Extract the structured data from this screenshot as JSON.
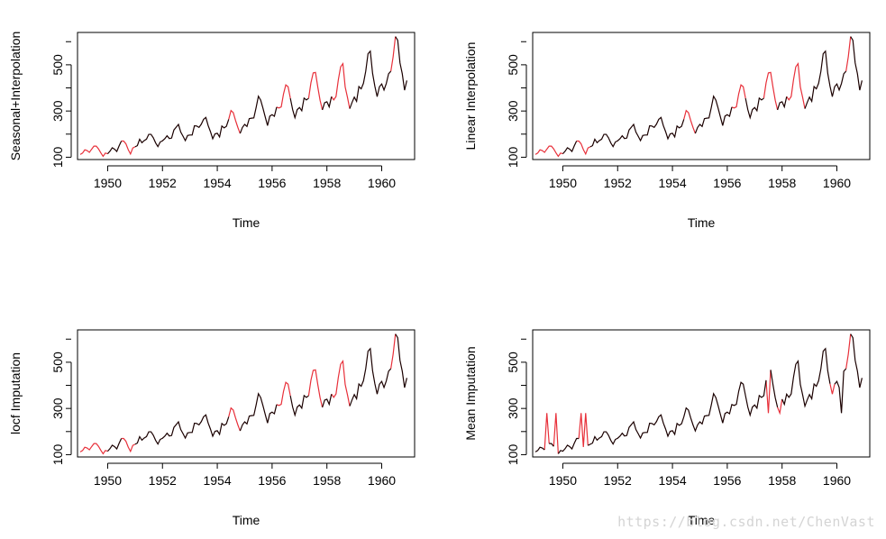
{
  "watermark": "https://blog.csdn.net/ChenVast",
  "colors": {
    "imputed": "#e8303a",
    "original": "#1a0000",
    "axis": "#000000"
  },
  "chart_data": [
    {
      "type": "line",
      "title": "",
      "xlabel": "Time",
      "ylabel": "Seasonal+Interpolation",
      "xlim": [
        1948.9,
        1961.2
      ],
      "ylim": [
        90,
        640
      ],
      "xticks": [
        1950,
        1952,
        1954,
        1956,
        1958,
        1960
      ],
      "yticks": [
        100,
        300,
        500
      ],
      "x_start": 1949,
      "x_step": 0.0833333,
      "series": [
        {
          "values": [
            112,
            118,
            132,
            129,
            121,
            135,
            148,
            148,
            136,
            119,
            104,
            118,
            115,
            126,
            141,
            135,
            125,
            149,
            170,
            170,
            158,
            133,
            114,
            140,
            145,
            150,
            178,
            163,
            172,
            178,
            199,
            199,
            184,
            162,
            146,
            166,
            171,
            180,
            193,
            181,
            183,
            218,
            230,
            242,
            209,
            191,
            172,
            194,
            196,
            196,
            236,
            235,
            229,
            243,
            264,
            272,
            237,
            211,
            180,
            201,
            204,
            188,
            235,
            227,
            234,
            264,
            302,
            293,
            259,
            229,
            203,
            229,
            242,
            233,
            267,
            269,
            270,
            315,
            364,
            347,
            312,
            274,
            237,
            278,
            284,
            277,
            317,
            313,
            318,
            374,
            413,
            405,
            355,
            306,
            271,
            306,
            315,
            301,
            356,
            348,
            355,
            422,
            465,
            467,
            404,
            347,
            305,
            336,
            340,
            318,
            362,
            348,
            363,
            435,
            491,
            505,
            404,
            359,
            310,
            337,
            360,
            342,
            406,
            396,
            420,
            472,
            548,
            559,
            463,
            407,
            362,
            405,
            417,
            391,
            419,
            461,
            472,
            535,
            622,
            606,
            508,
            461,
            390,
            432
          ]
        },
        {
          "values": [
            112,
            118,
            132,
            129,
            121,
            135,
            148,
            148,
            136,
            119,
            104,
            118,
            115,
            126,
            141,
            135,
            125,
            149,
            170,
            170,
            158,
            133,
            114,
            140,
            145,
            150,
            178,
            163,
            172,
            178,
            199,
            199,
            184,
            162,
            146,
            166,
            171,
            180,
            193,
            181,
            183,
            218,
            230,
            242,
            209,
            191,
            172,
            194,
            196,
            196,
            236,
            235,
            229,
            243,
            264,
            272,
            237,
            211,
            180,
            201,
            204,
            188,
            235,
            227,
            234,
            264,
            302,
            293,
            259,
            229,
            203,
            229,
            242,
            233,
            267,
            269,
            270,
            315,
            364,
            347,
            312,
            274,
            237,
            278,
            284,
            277,
            317,
            313,
            318,
            374,
            413,
            405,
            355,
            306,
            271,
            306,
            315,
            301,
            356,
            348,
            355,
            422,
            465,
            467,
            404,
            347,
            305,
            336,
            340,
            318,
            362,
            348,
            363,
            435,
            491,
            505,
            404,
            359,
            310,
            337,
            360,
            342,
            406,
            396,
            420,
            472,
            548,
            559,
            463,
            407,
            362,
            405,
            417,
            391,
            419,
            461,
            472,
            535,
            622,
            606,
            508,
            461,
            390,
            432
          ]
        }
      ],
      "imputed_segments": [
        [
          0,
          12
        ],
        [
          18,
          24
        ],
        [
          65,
          70
        ],
        [
          86,
          92
        ],
        [
          100,
          106
        ],
        [
          110,
          118
        ],
        [
          136,
          138
        ]
      ]
    },
    {
      "type": "line",
      "title": "",
      "xlabel": "Time",
      "ylabel": "Linear Interpolation",
      "xlim": [
        1948.9,
        1961.2
      ],
      "ylim": [
        90,
        640
      ],
      "xticks": [
        1950,
        1952,
        1954,
        1956,
        1958,
        1960
      ],
      "yticks": [
        100,
        300,
        500
      ],
      "x_start": 1949,
      "x_step": 0.0833333,
      "series": [
        {
          "values": [
            112,
            118,
            132,
            129,
            121,
            135,
            148,
            148,
            136,
            119,
            104,
            118,
            115,
            126,
            141,
            135,
            125,
            149,
            170,
            170,
            158,
            133,
            114,
            140,
            145,
            150,
            178,
            163,
            172,
            178,
            199,
            199,
            184,
            162,
            146,
            166,
            171,
            180,
            193,
            181,
            183,
            218,
            230,
            242,
            209,
            191,
            172,
            194,
            196,
            196,
            236,
            235,
            229,
            243,
            264,
            272,
            237,
            211,
            180,
            201,
            204,
            188,
            235,
            227,
            234,
            264,
            302,
            293,
            259,
            229,
            203,
            229,
            242,
            233,
            267,
            269,
            270,
            315,
            364,
            347,
            312,
            274,
            237,
            278,
            284,
            277,
            317,
            313,
            318,
            374,
            413,
            405,
            355,
            306,
            271,
            306,
            315,
            301,
            356,
            348,
            355,
            422,
            465,
            467,
            404,
            347,
            305,
            336,
            340,
            318,
            362,
            348,
            363,
            435,
            491,
            505,
            404,
            359,
            310,
            337,
            360,
            342,
            406,
            396,
            420,
            472,
            548,
            559,
            463,
            407,
            362,
            405,
            417,
            391,
            419,
            461,
            472,
            535,
            622,
            606,
            508,
            461,
            390,
            432
          ]
        }
      ],
      "imputed_segments": [
        [
          0,
          12
        ],
        [
          18,
          24
        ],
        [
          65,
          70
        ],
        [
          86,
          92
        ],
        [
          100,
          106
        ],
        [
          110,
          118
        ],
        [
          136,
          138
        ]
      ]
    },
    {
      "type": "line",
      "title": "",
      "xlabel": "Time",
      "ylabel": "locf Imputation",
      "xlim": [
        1948.9,
        1961.2
      ],
      "ylim": [
        90,
        640
      ],
      "xticks": [
        1950,
        1952,
        1954,
        1956,
        1958,
        1960
      ],
      "yticks": [
        100,
        300,
        500
      ],
      "x_start": 1949,
      "x_step": 0.0833333,
      "series": [
        {
          "values": [
            112,
            118,
            132,
            129,
            121,
            135,
            148,
            148,
            136,
            119,
            104,
            118,
            115,
            126,
            141,
            135,
            125,
            149,
            170,
            170,
            158,
            133,
            114,
            140,
            145,
            150,
            178,
            163,
            172,
            178,
            199,
            199,
            184,
            162,
            146,
            166,
            171,
            180,
            193,
            181,
            183,
            218,
            230,
            242,
            209,
            191,
            172,
            194,
            196,
            196,
            236,
            235,
            229,
            243,
            264,
            272,
            237,
            211,
            180,
            201,
            204,
            188,
            235,
            227,
            234,
            264,
            302,
            293,
            259,
            229,
            203,
            229,
            242,
            233,
            267,
            269,
            270,
            315,
            364,
            347,
            312,
            274,
            237,
            278,
            284,
            277,
            317,
            313,
            318,
            374,
            413,
            405,
            355,
            306,
            271,
            306,
            315,
            301,
            356,
            348,
            355,
            422,
            465,
            467,
            404,
            347,
            305,
            336,
            340,
            318,
            362,
            348,
            363,
            435,
            491,
            505,
            404,
            359,
            310,
            337,
            360,
            342,
            406,
            396,
            420,
            472,
            548,
            559,
            463,
            407,
            362,
            405,
            417,
            391,
            419,
            461,
            472,
            535,
            622,
            606,
            508,
            461,
            390,
            432
          ]
        }
      ],
      "imputed_segments": [
        [
          0,
          12
        ],
        [
          18,
          24
        ],
        [
          65,
          70
        ],
        [
          86,
          92
        ],
        [
          100,
          106
        ],
        [
          110,
          118
        ],
        [
          136,
          138
        ]
      ]
    },
    {
      "type": "line",
      "title": "",
      "xlabel": "Time",
      "ylabel": "Mean Imputation",
      "xlim": [
        1948.9,
        1961.2
      ],
      "ylim": [
        90,
        640
      ],
      "xticks": [
        1950,
        1952,
        1954,
        1956,
        1958,
        1960
      ],
      "yticks": [
        100,
        300,
        500
      ],
      "x_start": 1949,
      "x_step": 0.0833333,
      "series": [
        {
          "values": [
            112,
            118,
            132,
            129,
            121,
            280,
            148,
            148,
            136,
            280,
            104,
            118,
            115,
            126,
            141,
            135,
            125,
            149,
            170,
            170,
            280,
            133,
            280,
            140,
            145,
            150,
            178,
            163,
            172,
            178,
            199,
            199,
            184,
            162,
            146,
            166,
            171,
            180,
            193,
            181,
            183,
            218,
            230,
            242,
            209,
            191,
            172,
            194,
            196,
            196,
            236,
            235,
            229,
            243,
            264,
            272,
            237,
            211,
            180,
            201,
            204,
            188,
            235,
            227,
            234,
            264,
            302,
            293,
            259,
            229,
            203,
            229,
            242,
            233,
            267,
            269,
            270,
            315,
            364,
            347,
            312,
            274,
            237,
            278,
            284,
            277,
            317,
            313,
            318,
            374,
            413,
            405,
            355,
            306,
            271,
            306,
            315,
            301,
            356,
            348,
            355,
            422,
            280,
            467,
            404,
            347,
            305,
            280,
            340,
            318,
            362,
            348,
            363,
            435,
            491,
            505,
            404,
            359,
            310,
            337,
            360,
            342,
            406,
            396,
            420,
            472,
            548,
            559,
            463,
            407,
            362,
            405,
            417,
            391,
            280,
            461,
            472,
            535,
            622,
            606,
            508,
            461,
            390,
            432
          ]
        }
      ],
      "imputed_segments": [
        [
          4,
          6
        ],
        [
          8,
          10
        ],
        [
          19,
          23
        ],
        [
          101,
          103
        ],
        [
          106,
          108
        ],
        [
          129,
          131
        ],
        [
          136,
          138
        ]
      ]
    }
  ]
}
